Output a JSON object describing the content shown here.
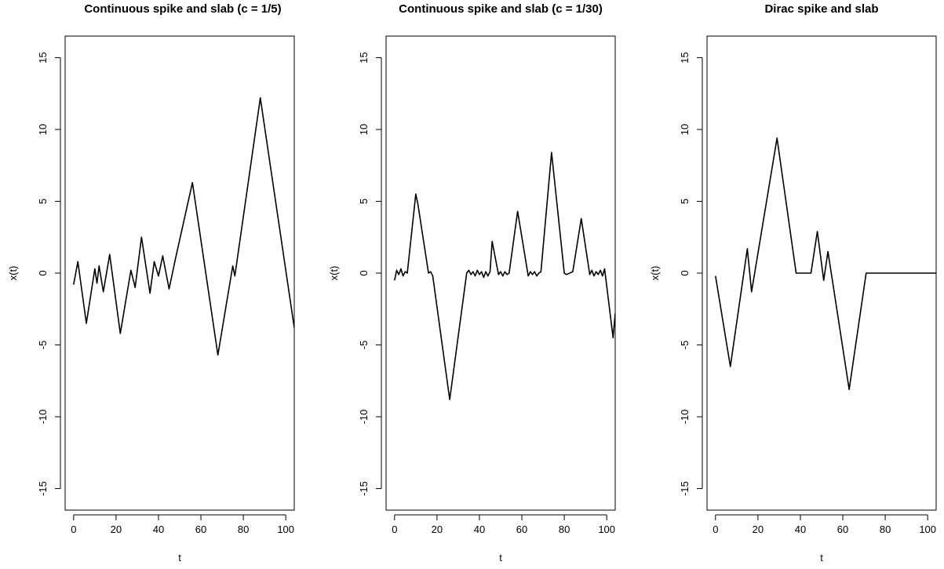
{
  "chart_data": [
    {
      "type": "line",
      "title": "Continuous spike and slab (c = 1/5)",
      "xlabel": "t",
      "ylabel": "x(t)",
      "xlim": [
        -4,
        104
      ],
      "ylim": [
        -16.5,
        16.5
      ],
      "xticks": [
        "0",
        "20",
        "40",
        "60",
        "80",
        "100"
      ],
      "yticks": [
        "-15",
        "-10",
        "-5",
        "0",
        "5",
        "10",
        "15"
      ],
      "grid": false,
      "x": [
        0,
        2,
        6,
        10,
        11,
        12,
        14,
        17,
        22,
        27,
        29,
        32,
        36,
        38,
        40,
        42,
        45,
        48,
        56,
        68,
        75,
        76,
        88,
        104
      ],
      "y": [
        -0.8,
        0.8,
        -3.5,
        0.3,
        -0.7,
        0.5,
        -1.3,
        1.3,
        -4.2,
        0.2,
        -1.0,
        2.5,
        -1.4,
        0.8,
        -0.2,
        1.2,
        -1.1,
        1.0,
        6.3,
        -5.7,
        0.5,
        -0.2,
        12.2,
        -3.8
      ]
    },
    {
      "type": "line",
      "title": "Continuous spike and slab (c = 1/30)",
      "xlabel": "t",
      "ylabel": "x(t)",
      "xlim": [
        -4,
        104
      ],
      "ylim": [
        -16.5,
        16.5
      ],
      "xticks": [
        "0",
        "20",
        "40",
        "60",
        "80",
        "100"
      ],
      "yticks": [
        "-15",
        "-10",
        "-5",
        "0",
        "5",
        "10",
        "15"
      ],
      "grid": false,
      "x": [
        0,
        1,
        2,
        3,
        4,
        5,
        6,
        10,
        11,
        16,
        17,
        18,
        26,
        34,
        35,
        36,
        37,
        38,
        39,
        40,
        41,
        42,
        43,
        44,
        45,
        46,
        49,
        50,
        51,
        52,
        53,
        54,
        58,
        63,
        64,
        65,
        66,
        67,
        68,
        69,
        74,
        80,
        81,
        84,
        88,
        92,
        93,
        94,
        95,
        96,
        97,
        98,
        99,
        103,
        104
      ],
      "y": [
        -0.5,
        0.2,
        -0.1,
        0.3,
        -0.2,
        0.1,
        0.0,
        5.5,
        4.8,
        0.0,
        0.1,
        -0.2,
        -8.8,
        0.0,
        0.2,
        -0.1,
        0.1,
        -0.2,
        0.2,
        -0.1,
        0.1,
        -0.3,
        0.1,
        -0.2,
        0.1,
        2.2,
        -0.1,
        0.1,
        -0.2,
        0.1,
        -0.1,
        0.0,
        4.3,
        -0.2,
        0.1,
        -0.1,
        0.1,
        -0.2,
        0.0,
        0.1,
        8.4,
        0.0,
        -0.1,
        0.1,
        3.8,
        -0.1,
        0.2,
        -0.2,
        0.1,
        -0.1,
        0.2,
        -0.2,
        0.3,
        -4.5,
        -2.8
      ]
    },
    {
      "type": "line",
      "title": "Dirac spike and slab",
      "xlabel": "t",
      "ylabel": "x(t)",
      "xlim": [
        -4,
        104
      ],
      "ylim": [
        -16.5,
        16.5
      ],
      "xticks": [
        "0",
        "20",
        "40",
        "60",
        "80",
        "100"
      ],
      "yticks": [
        "-15",
        "-10",
        "-5",
        "0",
        "5",
        "10",
        "15"
      ],
      "grid": false,
      "x": [
        0,
        7,
        15,
        17,
        29,
        38,
        45,
        48,
        51,
        53,
        63,
        71,
        104
      ],
      "y": [
        -0.2,
        -6.5,
        1.7,
        -1.3,
        9.4,
        0.0,
        0.0,
        2.9,
        -0.5,
        1.5,
        -8.1,
        0.0,
        0.0
      ]
    }
  ]
}
